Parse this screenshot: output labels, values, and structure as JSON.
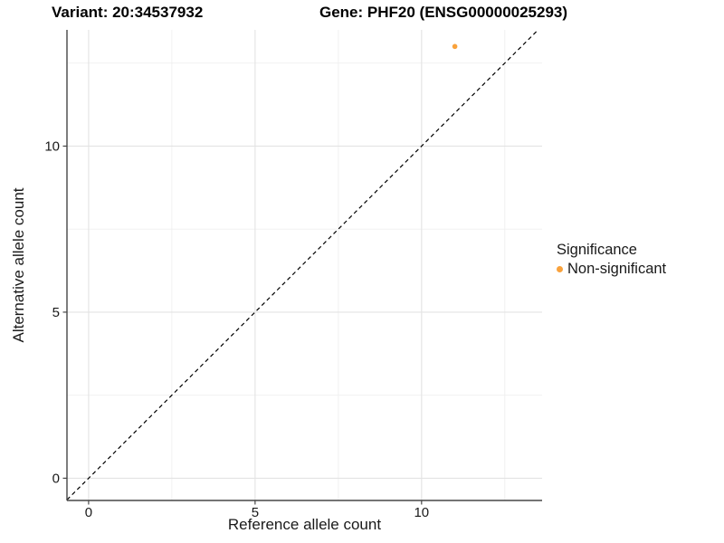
{
  "chart_data": {
    "type": "scatter",
    "title_variant": "Variant: 20:34537932",
    "title_gene": "Gene: PHF20 (ENSG00000025293)",
    "xlabel": "Reference allele count",
    "ylabel": "Alternative allele count",
    "xlim": [
      -0.65,
      13.62
    ],
    "ylim": [
      -0.67,
      13.5
    ],
    "x_major_ticks": [
      0,
      5,
      10
    ],
    "x_minor_ticks": [
      2.5,
      7.5,
      12.5
    ],
    "y_major_ticks": [
      0,
      5,
      10
    ],
    "y_minor_ticks": [
      2.5,
      7.5,
      12.5
    ],
    "x_tick_labels": [
      "0",
      "5",
      "10"
    ],
    "y_tick_labels": [
      "0",
      "5",
      "10"
    ],
    "grid": true,
    "points": [
      {
        "x": 11,
        "y": 13,
        "series": "Non-significant"
      }
    ],
    "reference_line": {
      "type": "identity",
      "style": "dashed",
      "color": "#000000"
    },
    "legend": {
      "title": "Significance",
      "position": "right",
      "items": [
        {
          "label": "Non-significant",
          "color": "#F9A23C"
        }
      ]
    },
    "colors": {
      "point": "#F9A23C",
      "grid_major": "#E3E3E3",
      "grid_minor": "#EFEFEF",
      "axis_line": "#464646",
      "tick_text": "#1a1a1a",
      "background": "#ffffff"
    }
  }
}
